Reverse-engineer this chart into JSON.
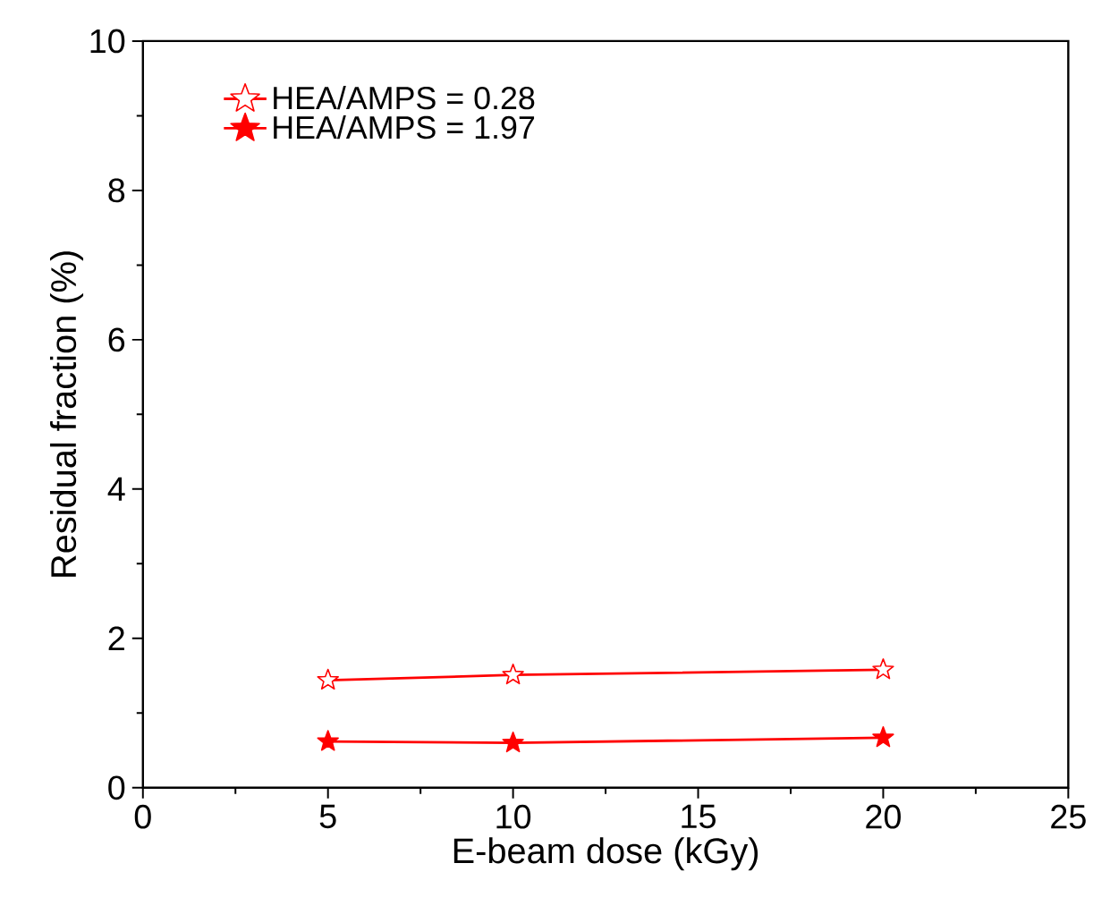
{
  "chart_data": {
    "type": "line",
    "xlabel": "E-beam dose (kGy)",
    "ylabel": "Residual fraction (%)",
    "x": [
      5,
      10,
      20
    ],
    "series": [
      {
        "name": "HEA/AMPS = 0.28",
        "color": "#ff0000",
        "values": [
          1.44,
          1.51,
          1.58
        ]
      },
      {
        "name": "HEA/AMPS = 1.97",
        "color": "#ff0000",
        "values": [
          0.62,
          0.6,
          0.67
        ]
      }
    ],
    "xlim": [
      0,
      25
    ],
    "xticks": [
      0,
      5,
      10,
      15,
      20,
      25
    ],
    "ylim": [
      0,
      10
    ],
    "yticks": [
      0,
      2,
      4,
      6,
      8,
      10
    ],
    "grid": false,
    "legend": "top left",
    "marker": "star",
    "line_style": "solid"
  }
}
